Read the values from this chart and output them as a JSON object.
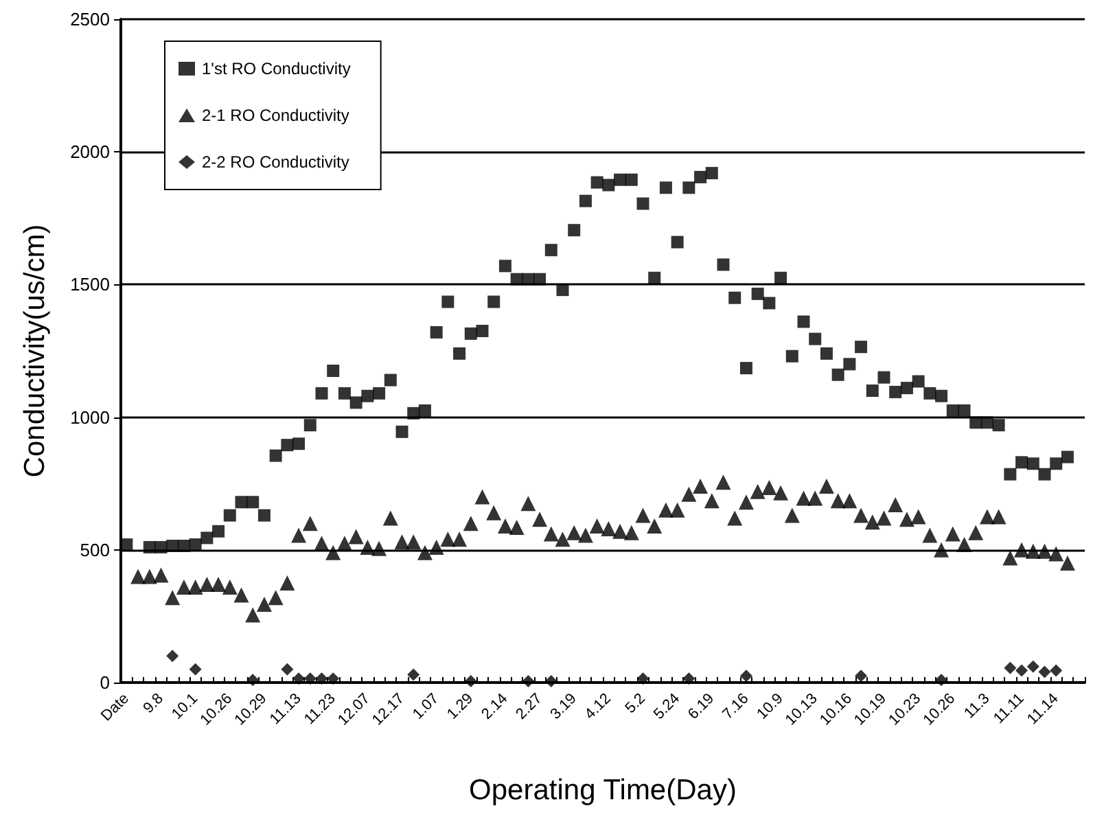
{
  "chart_data": {
    "type": "scatter",
    "xlabel": "Operating Time(Day)",
    "ylabel": "Conductivity(us/cm)",
    "categories": [
      "Date",
      null,
      null,
      "9.8",
      null,
      null,
      "10.1",
      null,
      null,
      "10.26",
      null,
      null,
      "10.29",
      null,
      null,
      "11.13",
      null,
      null,
      "11.23",
      null,
      null,
      "12.07",
      null,
      null,
      "12.17",
      null,
      null,
      "1.07",
      null,
      null,
      "1.29",
      null,
      null,
      "2.14",
      null,
      null,
      "2.27",
      null,
      null,
      "3.19",
      null,
      null,
      "4.12",
      null,
      null,
      "5.2",
      null,
      null,
      "5.24",
      null,
      null,
      "6.19",
      null,
      null,
      "7.16",
      null,
      null,
      "10.9",
      null,
      null,
      "10.13",
      null,
      null,
      "10.16",
      null,
      null,
      "10.19",
      null,
      null,
      "10.23",
      null,
      null,
      "10.26",
      null,
      null,
      "11.3",
      null,
      null,
      "11.11",
      null,
      null,
      "11.14",
      null,
      null
    ],
    "ylim": [
      0,
      2500
    ],
    "yticks": [
      0,
      500,
      1000,
      1500,
      2000,
      2500
    ],
    "grid": "y",
    "legend": "top left",
    "series": [
      {
        "name": "1'st RO Conductivity",
        "color": "#000000",
        "marker": "square",
        "values": [
          520,
          null,
          510,
          510,
          515,
          515,
          520,
          545,
          570,
          630,
          680,
          680,
          630,
          855,
          895,
          900,
          970,
          1090,
          1175,
          1090,
          1055,
          1080,
          1090,
          1140,
          945,
          1015,
          1025,
          1320,
          1435,
          1240,
          1315,
          1325,
          1435,
          1570,
          1520,
          1520,
          1520,
          1630,
          1480,
          1705,
          1815,
          1885,
          1875,
          1895,
          1895,
          1805,
          1525,
          1865,
          1660,
          1865,
          1905,
          1920,
          1575,
          1450,
          1185,
          1465,
          1430,
          1525,
          1230,
          1360,
          1295,
          1240,
          1160,
          1200,
          1265,
          1100,
          1150,
          1095,
          1110,
          1135,
          1090,
          1080,
          1025,
          1025,
          980,
          980,
          970,
          785,
          830,
          825,
          785,
          825,
          850,
          null
        ]
      },
      {
        "name": "2-1 RO Conductivity",
        "color": "#000000",
        "marker": "triangle",
        "values": [
          null,
          400,
          400,
          405,
          320,
          360,
          360,
          370,
          370,
          360,
          330,
          255,
          295,
          320,
          375,
          555,
          600,
          525,
          490,
          525,
          550,
          510,
          505,
          620,
          530,
          530,
          490,
          510,
          540,
          540,
          600,
          700,
          640,
          590,
          585,
          675,
          615,
          560,
          540,
          565,
          555,
          590,
          580,
          570,
          565,
          630,
          590,
          650,
          650,
          710,
          740,
          685,
          755,
          620,
          680,
          720,
          735,
          715,
          630,
          695,
          695,
          740,
          685,
          685,
          630,
          605,
          620,
          670,
          615,
          625,
          555,
          500,
          560,
          520,
          565,
          625,
          625,
          470,
          500,
          495,
          495,
          485,
          450,
          null
        ]
      },
      {
        "name": "2-2 RO Conductivity",
        "color": "#000000",
        "marker": "diamond",
        "values": [
          null,
          null,
          null,
          null,
          100,
          null,
          50,
          null,
          null,
          null,
          null,
          10,
          null,
          null,
          50,
          15,
          15,
          15,
          15,
          null,
          null,
          null,
          null,
          null,
          null,
          30,
          null,
          null,
          null,
          null,
          5,
          null,
          null,
          null,
          null,
          5,
          null,
          5,
          null,
          null,
          null,
          null,
          null,
          null,
          null,
          15,
          null,
          null,
          null,
          15,
          null,
          null,
          null,
          null,
          25,
          null,
          null,
          null,
          null,
          null,
          null,
          null,
          null,
          null,
          25,
          null,
          null,
          null,
          null,
          null,
          null,
          10,
          null,
          null,
          null,
          null,
          null,
          55,
          45,
          60,
          40,
          45,
          null,
          null
        ]
      }
    ]
  }
}
